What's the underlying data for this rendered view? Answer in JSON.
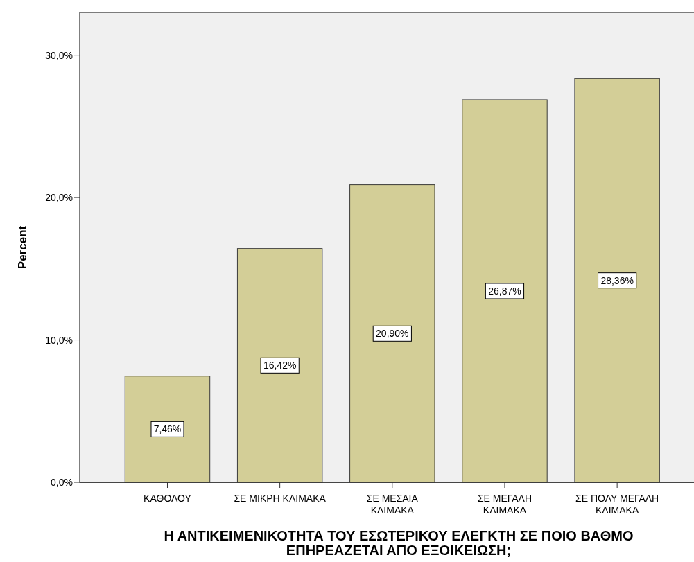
{
  "chart_data": {
    "type": "bar",
    "xlabel": "Η ΑΝΤΙΚΕΙΜΕΝΙΚΟΤΗΤΑ ΤΟΥ ΕΣΩΤΕΡΙΚΟΥ ΕΛΕΓΚΤΗ ΣΕ ΠΟΙΟ ΒΑΘΜΟ ΕΠΗΡΕΑΖΕΤΑΙ ΑΠΟ ΕΞΟΙΚΕΙΩΣΗ;",
    "ylabel": "Percent",
    "categories": [
      "ΚΑΘΟΛΟΥ",
      "ΣΕ ΜΙΚΡΗ ΚΛΙΜΑΚΑ",
      "ΣΕ ΜΕΣΑΙΑ ΚΛΙΜΑΚΑ",
      "ΣΕ ΜΕΓΑΛΗ ΚΛΙΜΑΚΑ",
      "ΣΕ ΠΟΛΥ ΜΕΓΑΛΗ ΚΛΙΜΑΚΑ"
    ],
    "values": [
      7.46,
      16.42,
      20.9,
      26.87,
      28.36
    ],
    "value_labels": [
      "7,46%",
      "16,42%",
      "20,90%",
      "26,87%",
      "28,36%"
    ],
    "color": "#d3ce97",
    "ylim": [
      0,
      33
    ],
    "yticks": [
      {
        "value": 0,
        "label": "0,0%"
      },
      {
        "value": 10,
        "label": "10,0%"
      },
      {
        "value": 20,
        "label": "20,0%"
      },
      {
        "value": 30,
        "label": "30,0%"
      }
    ],
    "grid": false
  }
}
